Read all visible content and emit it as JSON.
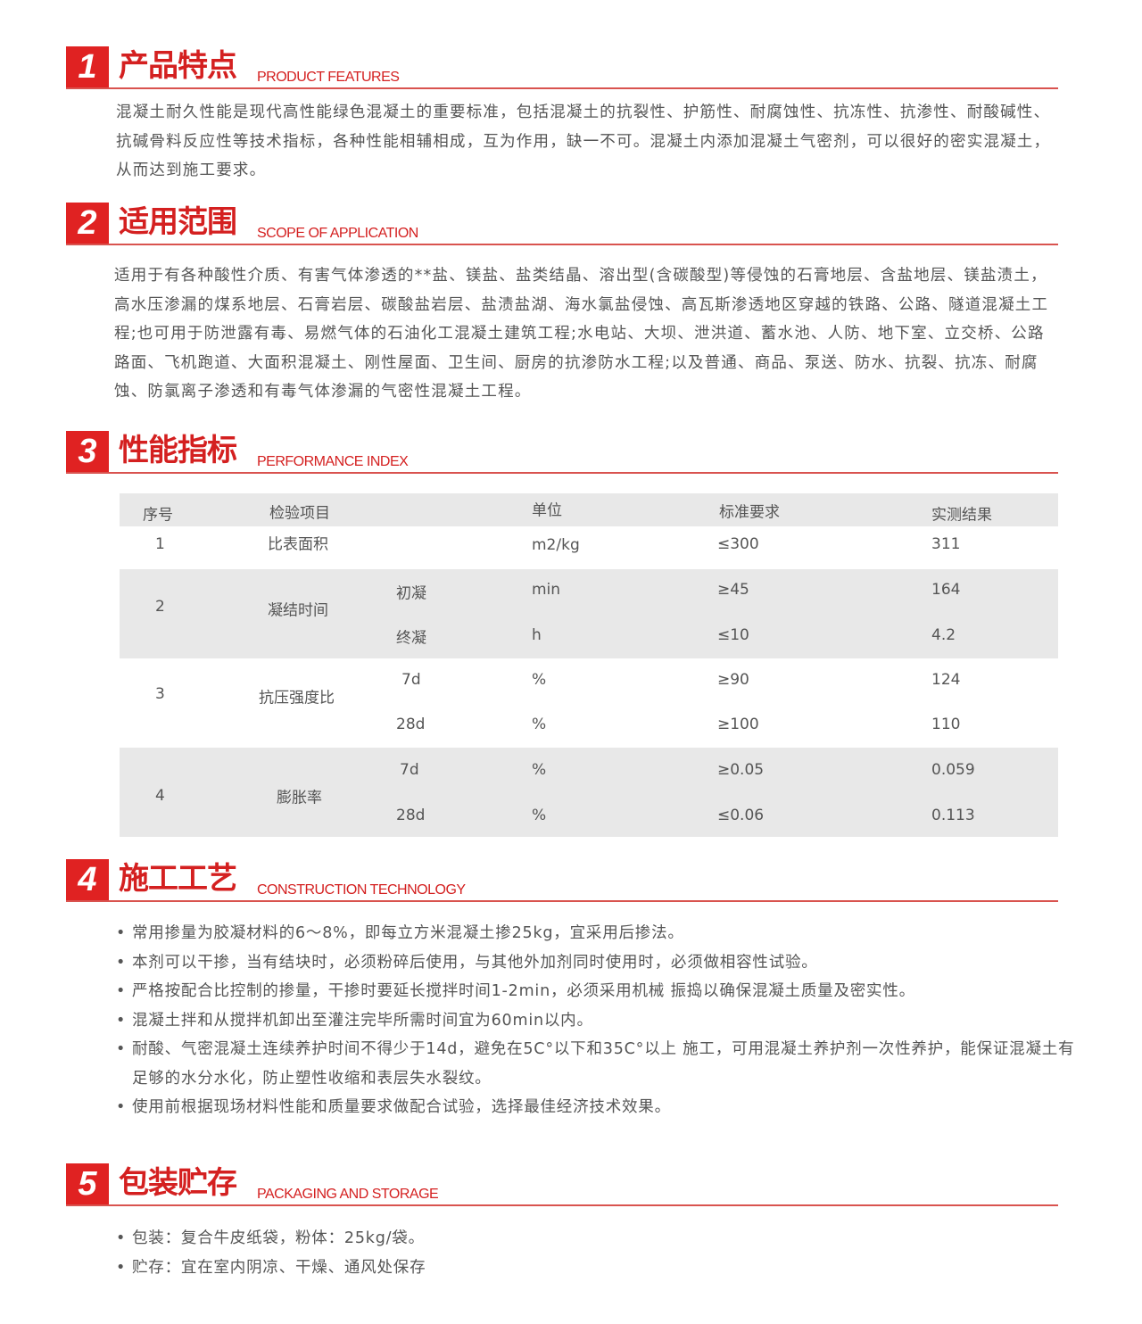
{
  "sections": [
    {
      "number": "1",
      "title": "产品特点",
      "subtitle": "PRODUCT FEATURES"
    },
    {
      "number": "2",
      "title": "适用范围",
      "subtitle": "SCOPE OF APPLICATION"
    },
    {
      "number": "3",
      "title": "性能指标",
      "subtitle": "PERFORMANCE INDEX"
    },
    {
      "number": "4",
      "title": "施工工艺",
      "subtitle": "CONSTRUCTION TECHNOLOGY"
    },
    {
      "number": "5",
      "title": "包装贮存",
      "subtitle": "PACKAGING AND STORAGE"
    }
  ],
  "features_text": "混凝土耐久性能是现代高性能绿色混凝土的重要标准，包括混凝土的抗裂性、护筋性、耐腐蚀性、抗冻性、抗渗性、耐酸碱性、抗碱骨料反应性等技术指标，各种性能相辅相成，互为作用，缺一不可。混凝土内添加混凝土气密剂，可以很好的密实混凝土，从而达到施工要求。",
  "scope_text": "适用于有各种酸性介质、有害气体渗透的**盐、镁盐、盐类结晶、溶出型(含碳酸型)等侵蚀的石膏地层、含盐地层、镁盐渍土，高水压渗漏的煤系地层、石膏岩层、碳酸盐岩层、盐渍盐湖、海水氯盐侵蚀、高瓦斯渗透地区穿越的铁路、公路、隧道混凝土工程;也可用于防泄露有毒、易燃气体的石油化工混凝土建筑工程;水电站、大坝、泄洪道、蓄水池、人防、地下室、立交桥、公路路面、飞机跑道、大面积混凝土、刚性屋面、卫生间、厨房的抗渗防水工程;以及普通、商品、泵送、防水、抗裂、抗冻、耐腐蚀、防氯离子渗透和有毒气体渗漏的气密性混凝土工程。",
  "table": {
    "headers": [
      "序号",
      "检验项目",
      "单位",
      "标准要求",
      "实测结果"
    ],
    "rows": [
      {
        "no": "1",
        "item": "比表面积",
        "sub": "",
        "unit": "m2/kg",
        "standard": "≤300",
        "result": "311"
      },
      {
        "no": "2",
        "item": "凝结时间",
        "sub": "初凝",
        "unit": "min",
        "standard": "≥45",
        "result": "164"
      },
      {
        "no": "",
        "item": "",
        "sub": "终凝",
        "unit": "h",
        "standard": "≤10",
        "result": "4.2"
      },
      {
        "no": "3",
        "item": "抗压强度比",
        "sub": "7d",
        "unit": "%",
        "standard": "≥90",
        "result": "124"
      },
      {
        "no": "",
        "item": "",
        "sub": "28d",
        "unit": "%",
        "standard": "≥100",
        "result": "110"
      },
      {
        "no": "4",
        "item": "膨胀率",
        "sub": "7d",
        "unit": "%",
        "standard": "≥0.05",
        "result": "0.059"
      },
      {
        "no": "",
        "item": "",
        "sub": "28d",
        "unit": "%",
        "standard": "≤0.06",
        "result": "0.113"
      }
    ]
  },
  "construction": [
    "常用掺量为胶凝材料的6～8%，即每立方米混凝土掺25kg，宜采用后掺法。",
    "本剂可以干掺，当有结块时，必须粉碎后使用，与其他外加剂同时使用时，必须做相容性试验。",
    "严格按配合比控制的掺量，干掺时要延长搅拌时间1-2min，必须采用机械 振捣以确保混凝土质量及密实性。",
    "混凝土拌和从搅拌机卸出至灌注完毕所需时间宜为60min以内。",
    "耐酸、气密混凝土连续养护时间不得少于14d，避免在5C°以下和35C°以上 施工，可用混凝土养护剂一次性养护，能保证混凝土有足够的水分水化，防止塑性收缩和表层失水裂纹。",
    "使用前根据现场材料性能和质量要求做配合试验，选择最佳经济技术效果。"
  ],
  "packaging": [
    "包装：复合牛皮纸袋，粉体：25kg/袋。",
    "贮存：宜在室内阴凉、干燥、通风处保存"
  ],
  "colors": {
    "accent": "#e02222",
    "text": "#555555",
    "row_gray": "#e8e8e8"
  }
}
